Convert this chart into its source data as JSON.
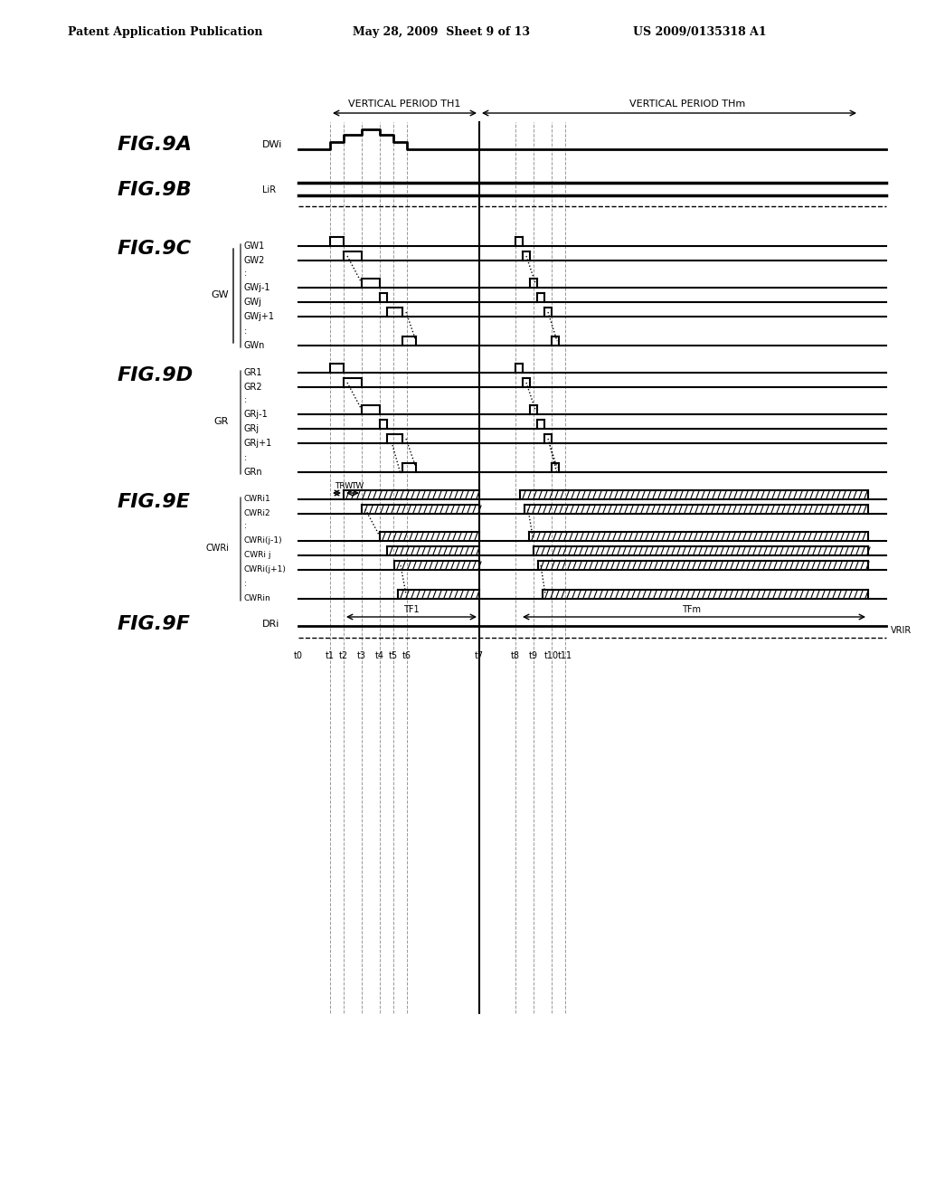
{
  "header_left": "Patent Application Publication",
  "header_mid": "May 28, 2009  Sheet 9 of 13",
  "header_right": "US 2009/0135318 A1",
  "fig_labels": [
    "FIG.9A",
    "FIG.9B",
    "FIG.9C",
    "FIG.9D",
    "FIG.9E",
    "FIG.9F"
  ],
  "signal_labels_A": "DWi",
  "signal_labels_B": "LiR",
  "signal_labels_C": [
    "GW1",
    "GW2",
    ":",
    "GWj-1",
    "GWj",
    "GWj+1",
    ":",
    "GWn"
  ],
  "signal_labels_D": [
    "GR1",
    "GR2",
    ":",
    "GRj-1",
    "GRj",
    "GRj+1",
    ":",
    "GRn"
  ],
  "signal_labels_E": [
    "CWRi1",
    "CWRi2",
    ":",
    "CWRi(j-1)",
    "CWRi j",
    "CWRi(j+1)",
    ":",
    "CWRin"
  ],
  "signal_labels_F": "DRi",
  "group_label_C": "GW",
  "group_label_D": "GR",
  "group_label_E": "CWRi",
  "period_label1": "VERTICAL PERIOD TH1",
  "period_label2": "VERTICAL PERIOD THm",
  "time_labels": [
    "t0",
    "t1",
    "t2",
    "t3",
    "t4",
    "t5",
    "t6",
    "t7",
    "t8",
    "t9",
    "t10",
    "t11"
  ],
  "trw_label": "TRW",
  "tw_label": "TW",
  "tf1_label": "TF1",
  "tfm_label": "TFm",
  "vrir_label": "VRIR",
  "bg_color": "#ffffff",
  "line_color": "#000000"
}
